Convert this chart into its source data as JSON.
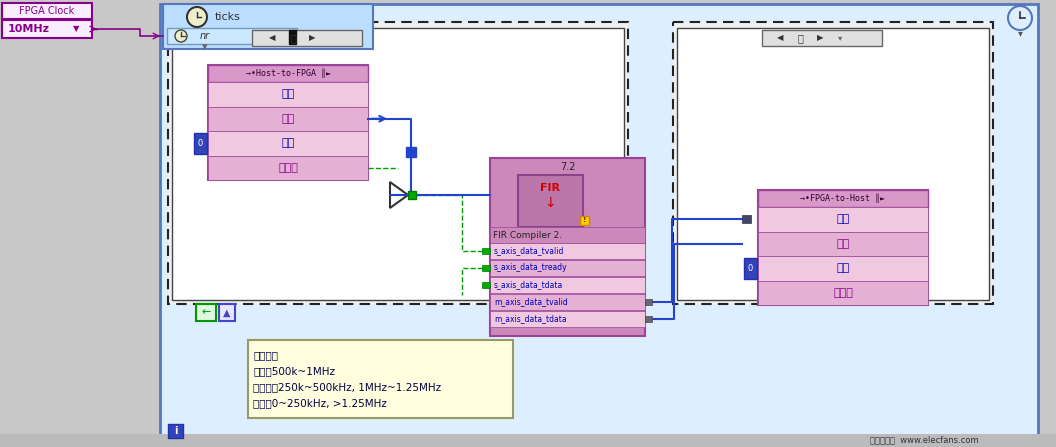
{
  "bg_outer": "#c8c8c8",
  "bg_blue_main": "#ddeeff",
  "bg_white_panel": "#f8f8f8",
  "gray_dark": "#555555",
  "gray_med": "#888888",
  "border_dashed_color": "#444444",
  "blue_border_main": "#5588cc",
  "fpga_clock_label": "FPGA Clock",
  "fpga_clock_val": "10MHz",
  "ticks_label": "ticks",
  "host_to_fpga_label": "→•Host-to-FPGA ║►",
  "host_rows": [
    "读取",
    "元素",
    "超时",
    "超时？"
  ],
  "fir_label": "FIR Compiler 2.",
  "fir_version": "7.2",
  "fir_ports": [
    "s_axis_data_tvalid",
    "s_axis_data_tready",
    "s_axis_data_tdata",
    "m_axis_data_tvalid",
    "m_axis_data_tdata"
  ],
  "fpga_to_host_label": "→•FPGA-to-Host ║►",
  "fpga_to_host_rows": [
    "写入",
    "元素",
    "超时",
    "超时？"
  ],
  "note_text_lines": [
    "滤波器：",
    "通带：500k~1MHz",
    "过度带：250k~500kHz, 1MHz~1.25MHz",
    "阻带：0~250kHz, >1.25MHz"
  ],
  "pink_light": "#e8b8d8",
  "pink_title": "#d898c8",
  "pink_fir": "#c878b8",
  "purple_border": "#994499",
  "purple_text": "#880088",
  "blue_text": "#0000bb",
  "green_wire": "#009900",
  "blue_wire": "#2244cc",
  "note_bg": "#ffffe0",
  "note_border": "#999966",
  "row_pink1": "#f0c8e0",
  "row_pink2": "#e4b0d4",
  "blue_square": "#2244cc",
  "dark_square": "#444466",
  "zero_box": "#3344bb",
  "watermark_text": "电子发烧友  www.elecfans.com",
  "watermark_bg": "#bbbbbb",
  "top_right_circle_bg": "#ddeeff"
}
